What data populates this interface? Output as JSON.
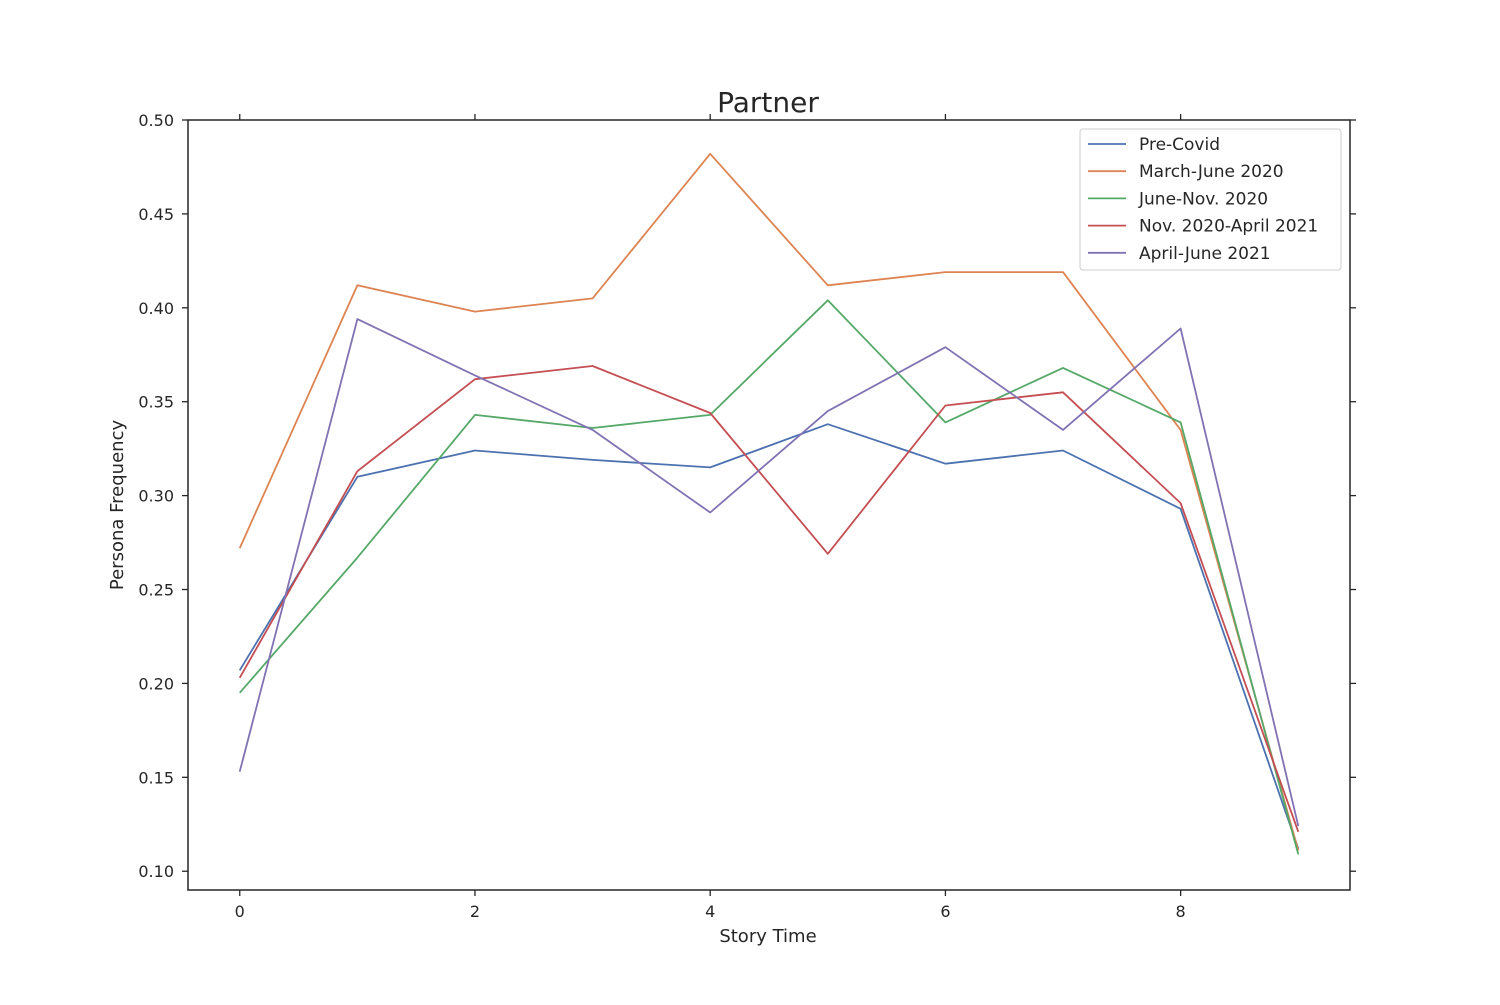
{
  "chart_data": {
    "type": "line",
    "title": "Partner",
    "xlabel": "Story Time",
    "ylabel": "Persona Frequency",
    "x": [
      0,
      1,
      2,
      3,
      4,
      5,
      6,
      7,
      8,
      9
    ],
    "xlim": [
      -0.44,
      9.44
    ],
    "ylim": [
      0.09,
      0.5
    ],
    "xticks": [
      0,
      2,
      4,
      6,
      8
    ],
    "yticks": [
      0.1,
      0.15,
      0.2,
      0.25,
      0.3,
      0.35,
      0.4,
      0.45,
      0.5
    ],
    "xtick_labels": [
      "0",
      "2",
      "4",
      "6",
      "8"
    ],
    "ytick_labels": [
      "0.10",
      "0.15",
      "0.20",
      "0.25",
      "0.30",
      "0.35",
      "0.40",
      "0.45",
      "0.50"
    ],
    "grid": false,
    "legend_position": "top-right",
    "series": [
      {
        "name": "Pre-Covid",
        "color": "#4c72b0",
        "values": [
          0.207,
          0.31,
          0.324,
          0.319,
          0.315,
          0.338,
          0.317,
          0.324,
          0.293,
          0.112
        ]
      },
      {
        "name": "March-June 2020",
        "color": "#dd8452",
        "values": [
          0.272,
          0.412,
          0.398,
          0.405,
          0.482,
          0.412,
          0.419,
          0.419,
          0.335,
          0.111
        ]
      },
      {
        "name": "June-Nov. 2020",
        "color": "#55a868",
        "values": [
          0.195,
          0.267,
          0.343,
          0.336,
          0.343,
          0.404,
          0.339,
          0.368,
          0.339,
          0.109
        ]
      },
      {
        "name": "Nov. 2020-April 2021",
        "color": "#c44e52",
        "values": [
          0.203,
          0.313,
          0.362,
          0.369,
          0.344,
          0.269,
          0.348,
          0.355,
          0.296,
          0.121
        ]
      },
      {
        "name": "April-June 2021",
        "color": "#8172b3",
        "values": [
          0.153,
          0.394,
          0.364,
          0.335,
          0.291,
          0.345,
          0.379,
          0.335,
          0.389,
          0.124
        ]
      }
    ]
  }
}
